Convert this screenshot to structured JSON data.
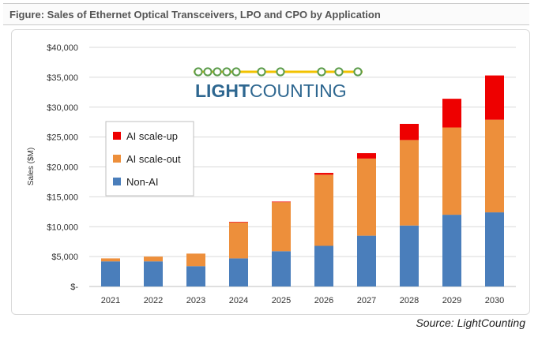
{
  "figure": {
    "title": "Figure: Sales of Ethernet Optical Transceivers, LPO and CPO by Application",
    "source": "Source: LightCounting"
  },
  "logo": {
    "text_bold": "LIGHT",
    "text_regular": "COUNTING",
    "bar_color": "#f2c200",
    "node_color": "#5c9c4a",
    "text_color": "#2e6790"
  },
  "chart_data": {
    "type": "bar",
    "stacked": true,
    "categories": [
      "2021",
      "2022",
      "2023",
      "2024",
      "2025",
      "2026",
      "2027",
      "2028",
      "2029",
      "2030"
    ],
    "series": [
      {
        "name": "Non-AI",
        "color": "#4a7ebb",
        "values": [
          4200,
          4200,
          3400,
          4700,
          5900,
          6800,
          8500,
          10200,
          12000,
          12400
        ]
      },
      {
        "name": "AI scale-out",
        "color": "#ed8f3b",
        "values": [
          500,
          800,
          2100,
          6000,
          8200,
          11900,
          12900,
          14300,
          14600,
          15500
        ]
      },
      {
        "name": "AI scale-up",
        "color": "#ee0000",
        "values": [
          0,
          0,
          0,
          100,
          100,
          300,
          900,
          2700,
          4800,
          7400
        ]
      }
    ],
    "legend_order": [
      "AI scale-up",
      "AI scale-out",
      "Non-AI"
    ],
    "xlabel": "",
    "ylabel": "Sales ($M)",
    "ylim": [
      0,
      40000
    ],
    "yticks": [
      0,
      5000,
      10000,
      15000,
      20000,
      25000,
      30000,
      35000,
      40000
    ],
    "ytick_labels": [
      "$-",
      "$5,000",
      "$10,000",
      "$15,000",
      "$20,000",
      "$25,000",
      "$30,000",
      "$35,000",
      "$40,000"
    ],
    "grid": true,
    "legend_position": "middle-left"
  }
}
